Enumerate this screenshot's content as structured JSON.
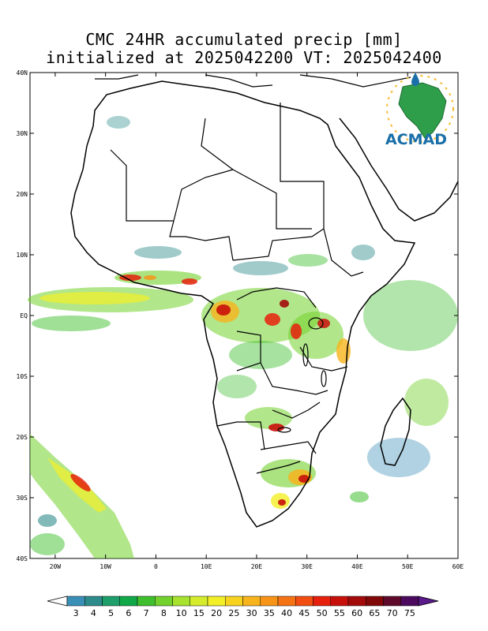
{
  "title": {
    "line1": "CMC 24HR accumulated precip [mm]",
    "line2": "initialized at 2025042200 VT: 2025042400"
  },
  "logo": {
    "text": "ACMAD"
  },
  "map": {
    "lon_range": [
      -25,
      60
    ],
    "lat_range": [
      -40,
      40
    ],
    "lat_ticks": [
      "40N",
      "30N",
      "20N",
      "10N",
      "EQ",
      "10S",
      "20S",
      "30S",
      "40S"
    ],
    "lon_ticks": [
      "20W",
      "10W",
      "0",
      "10E",
      "20E",
      "30E",
      "40E",
      "50E",
      "60E"
    ]
  },
  "colorbar": {
    "labels": [
      "3",
      "4",
      "5",
      "6",
      "7",
      "8",
      "10",
      "15",
      "20",
      "25",
      "30",
      "35",
      "40",
      "45",
      "50",
      "55",
      "60",
      "65",
      "70",
      "75"
    ],
    "colors": [
      "#3a8fb7",
      "#2e8b8b",
      "#1e9e6a",
      "#11a849",
      "#3fbf2e",
      "#72d12c",
      "#a6e22e",
      "#d4ec2b",
      "#f2ef27",
      "#f7d320",
      "#f7b41c",
      "#f79418",
      "#f57315",
      "#f24e11",
      "#e6200c",
      "#c8100a",
      "#a30a0a",
      "#800808",
      "#5e0a2a",
      "#4b0a5e"
    ],
    "under_color": "#ffffff",
    "over_color": "#5a1a8a"
  },
  "precip_colors": {
    "light": "#2e8b8b",
    "moderate": "#72d12c",
    "heavy": "#f2ef27",
    "intense": "#e6200c"
  }
}
